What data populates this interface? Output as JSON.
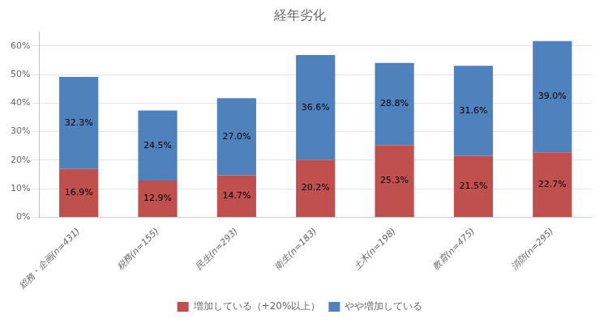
{
  "chart_data": {
    "type": "bar",
    "title": "経年劣化",
    "categories": [
      "総務・企画(n=431)",
      "税務(n=155)",
      "民生(n=293)",
      "衛生(n=183)",
      "土木(n=198)",
      "教育(n=475)",
      "消防(n=295)"
    ],
    "series": [
      {
        "name": "増加している（+20%以上）",
        "color": "#c0504d",
        "values": [
          16.9,
          12.9,
          14.7,
          20.2,
          25.3,
          21.5,
          22.7
        ],
        "value_labels": [
          "16.9%",
          "12.9%",
          "14.7%",
          "20.2%",
          "25.3%",
          "21.5%",
          "22.7%"
        ]
      },
      {
        "name": "やや増加している",
        "color": "#4f81bd",
        "values": [
          32.3,
          24.5,
          27.0,
          36.6,
          28.8,
          31.6,
          39.0
        ],
        "value_labels": [
          "32.3%",
          "24.5%",
          "27.0%",
          "36.6%",
          "28.8%",
          "31.6%",
          "39.0%"
        ]
      }
    ],
    "stacked": true,
    "data_labels": true,
    "ylim": [
      0,
      65
    ],
    "yticks": [
      {
        "value": 0,
        "label": "0%"
      },
      {
        "value": 10,
        "label": "10%"
      },
      {
        "value": 20,
        "label": "20%"
      },
      {
        "value": 30,
        "label": "30%"
      },
      {
        "value": 40,
        "label": "40%"
      },
      {
        "value": 50,
        "label": "50%"
      },
      {
        "value": 60,
        "label": "60%"
      }
    ],
    "grid": true,
    "legend": "bottom"
  }
}
